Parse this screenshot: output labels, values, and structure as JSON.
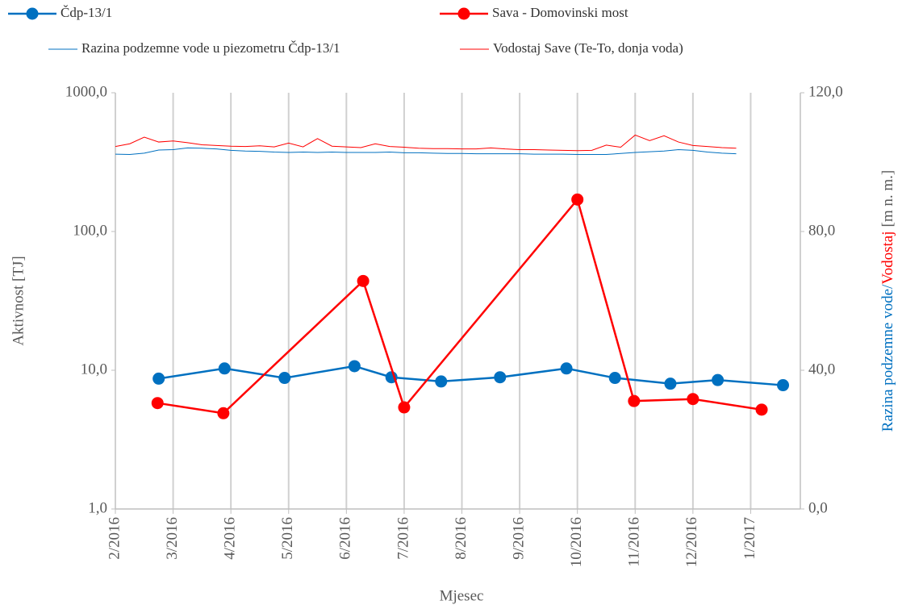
{
  "chart_data": {
    "type": "line",
    "xlabel": "Mjesec",
    "ylabel": "Aktivnost [TJ]",
    "y2label_parts": [
      "Razina podzemne vode/",
      "Vodostaj",
      "[m n. m.]"
    ],
    "y2label_colors": [
      "#0070c0",
      "#ff0000",
      "#595959"
    ],
    "ylog": true,
    "grid": "x",
    "xlim": [
      0,
      11.86
    ],
    "xticks": [
      {
        "value": 0,
        "label": "2/2016"
      },
      {
        "value": 1,
        "label": "3/2016"
      },
      {
        "value": 2,
        "label": "4/2016"
      },
      {
        "value": 3,
        "label": "5/2016"
      },
      {
        "value": 4,
        "label": "6/2016"
      },
      {
        "value": 5,
        "label": "7/2016"
      },
      {
        "value": 6,
        "label": "8/2016"
      },
      {
        "value": 7,
        "label": "9/2016"
      },
      {
        "value": 8,
        "label": "10/2016"
      },
      {
        "value": 9,
        "label": "11/2016"
      },
      {
        "value": 10,
        "label": "12/2016"
      },
      {
        "value": 11,
        "label": "1/2017"
      }
    ],
    "ylim": [
      1,
      1000
    ],
    "yticks": [
      {
        "value": 1,
        "label": "1,0"
      },
      {
        "value": 10,
        "label": "10,0"
      },
      {
        "value": 100,
        "label": "100,0"
      },
      {
        "value": 1000,
        "label": "1000,0"
      }
    ],
    "y2lim": [
      0,
      120
    ],
    "y2ticks": [
      {
        "value": 0,
        "label": "0,0"
      },
      {
        "value": 40,
        "label": "40,0"
      },
      {
        "value": 80,
        "label": "80,0"
      },
      {
        "value": 120,
        "label": "120,0"
      }
    ],
    "series": [
      {
        "name": "Čdp-13/1",
        "color": "#0070c0",
        "markers": true,
        "x": [
          0.75,
          1.89,
          2.93,
          4.14,
          4.78,
          5.64,
          6.66,
          7.81,
          8.65,
          9.61,
          10.43,
          11.56
        ],
        "values": [
          8.7,
          10.3,
          8.8,
          10.7,
          8.9,
          8.3,
          8.9,
          10.3,
          8.8,
          8.0,
          8.5,
          7.8
        ]
      },
      {
        "name": "Sava - Domovinski most",
        "color": "#ff0000",
        "markers": true,
        "x": [
          0.73,
          1.87,
          4.29,
          5.0,
          8.0,
          8.98,
          10.0,
          11.19
        ],
        "values": [
          5.8,
          4.9,
          44,
          5.4,
          170,
          6.0,
          6.2,
          5.2
        ]
      },
      {
        "name": "Razina podzemne vode u piezometru Čdp-13/1",
        "color": "#0070c0",
        "axis": "y2",
        "markers": false,
        "x": [
          0,
          0.25,
          0.5,
          0.75,
          1,
          1.25,
          1.5,
          1.75,
          2,
          2.25,
          2.5,
          2.75,
          3,
          3.25,
          3.5,
          3.75,
          4,
          4.25,
          4.5,
          4.75,
          5,
          5.25,
          5.5,
          5.75,
          6,
          6.25,
          6.5,
          6.75,
          7,
          7.25,
          7.5,
          7.75,
          8,
          8.25,
          8.5,
          8.75,
          9,
          9.25,
          9.5,
          9.75,
          10,
          10.25,
          10.5,
          10.75
        ],
        "values": [
          102.3,
          102.2,
          102.6,
          103.5,
          103.6,
          104.1,
          104.0,
          103.8,
          103.4,
          103.2,
          103.1,
          102.9,
          102.8,
          102.9,
          102.8,
          102.9,
          102.8,
          102.8,
          102.8,
          102.9,
          102.7,
          102.7,
          102.6,
          102.5,
          102.5,
          102.4,
          102.4,
          102.4,
          102.4,
          102.3,
          102.3,
          102.3,
          102.2,
          102.2,
          102.2,
          102.5,
          102.8,
          103.0,
          103.2,
          103.6,
          103.4,
          102.9,
          102.6,
          102.4
        ]
      },
      {
        "name": "Vodostaj Save (Te-To, donja voda)",
        "color": "#ff0000",
        "axis": "y2",
        "markers": false,
        "x": [
          0,
          0.25,
          0.5,
          0.75,
          1,
          1.25,
          1.5,
          1.75,
          2,
          2.25,
          2.5,
          2.75,
          3,
          3.25,
          3.5,
          3.75,
          4,
          4.25,
          4.5,
          4.75,
          5,
          5.25,
          5.5,
          5.75,
          6,
          6.25,
          6.5,
          6.75,
          7,
          7.25,
          7.5,
          7.75,
          8,
          8.25,
          8.5,
          8.75,
          9,
          9.25,
          9.5,
          9.75,
          10,
          10.25,
          10.5,
          10.75
        ],
        "values": [
          104.5,
          105.3,
          107.2,
          105.8,
          106.1,
          105.6,
          105.0,
          104.8,
          104.6,
          104.5,
          104.7,
          104.4,
          105.5,
          104.4,
          106.8,
          104.6,
          104.4,
          104.2,
          105.3,
          104.5,
          104.3,
          104.0,
          103.9,
          103.9,
          103.8,
          103.8,
          104.1,
          103.8,
          103.6,
          103.6,
          103.5,
          103.4,
          103.3,
          103.4,
          104.9,
          104.3,
          107.8,
          106.2,
          107.6,
          105.8,
          104.8,
          104.5,
          104.2,
          104.0
        ]
      }
    ]
  }
}
